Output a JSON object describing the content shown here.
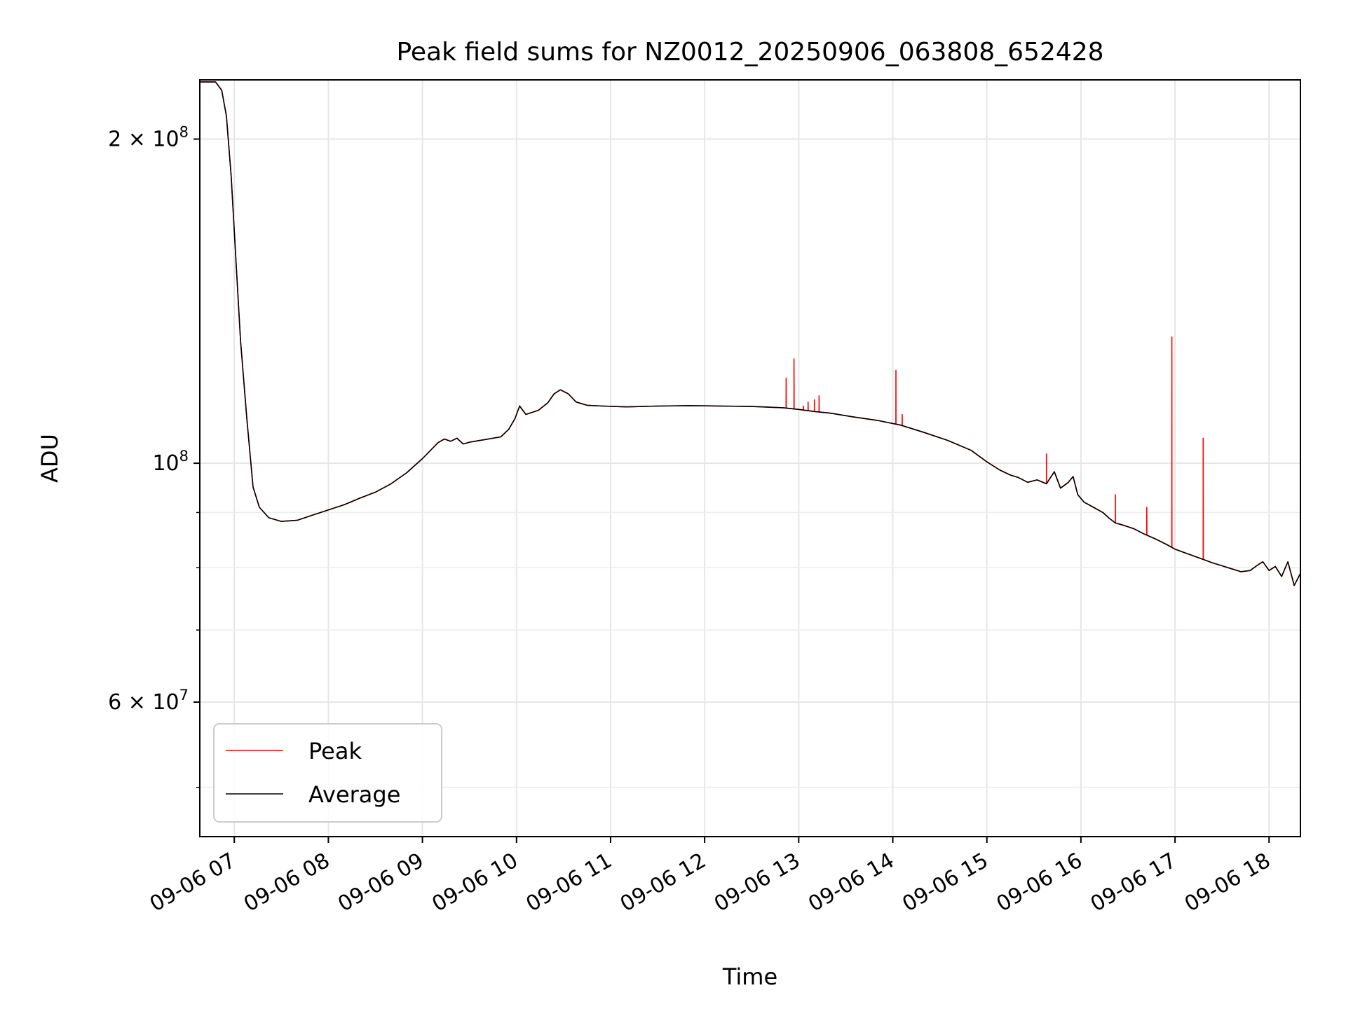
{
  "chart_data": {
    "type": "line",
    "title": "Peak field sums for NZ0012_20250906_063808_652428",
    "xlabel": "Time",
    "ylabel": "ADU",
    "y_scale": "log",
    "x_unit": "hours of 2025-09-06",
    "xlim": [
      "06:38",
      "18:20"
    ],
    "ylim": [
      45000000,
      227000000
    ],
    "grid": true,
    "legend_position": "lower-left",
    "x_ticks": [
      "09-06 07",
      "09-06 08",
      "09-06 09",
      "09-06 10",
      "09-06 11",
      "09-06 12",
      "09-06 13",
      "09-06 14",
      "09-06 15",
      "09-06 16",
      "09-06 17",
      "09-06 18"
    ],
    "y_ticks_major": [
      {
        "value": 200000000,
        "label": "2×10⁸",
        "mant": "2 × 10",
        "exp": "8"
      },
      {
        "value": 100000000,
        "label": "10⁸",
        "mant": "10",
        "exp": "8"
      },
      {
        "value": 60000000,
        "label": "6×10⁷",
        "mant": "6 × 10",
        "exp": "7"
      }
    ],
    "y_ticks_minor": [
      50000000,
      70000000,
      80000000,
      90000000
    ],
    "series": [
      {
        "name": "Peak",
        "color": "#ff0000"
      },
      {
        "name": "Average",
        "color": "#000000"
      }
    ],
    "average_points": [
      [
        "06:38",
        226000000
      ],
      [
        "06:48",
        226000000
      ],
      [
        "06:52",
        222000000
      ],
      [
        "06:55",
        210000000
      ],
      [
        "06:58",
        185000000
      ],
      [
        "07:01",
        155000000
      ],
      [
        "07:04",
        130000000
      ],
      [
        "07:08",
        110000000
      ],
      [
        "07:12",
        95000000
      ],
      [
        "07:16",
        91000000
      ],
      [
        "07:22",
        89000000
      ],
      [
        "07:30",
        88300000
      ],
      [
        "07:40",
        88500000
      ],
      [
        "07:50",
        89500000
      ],
      [
        "08:00",
        90500000
      ],
      [
        "08:10",
        91500000
      ],
      [
        "08:20",
        92800000
      ],
      [
        "08:30",
        94000000
      ],
      [
        "08:40",
        95700000
      ],
      [
        "08:50",
        98000000
      ],
      [
        "09:00",
        101000000
      ],
      [
        "09:10",
        104500000
      ],
      [
        "09:14",
        105300000
      ],
      [
        "09:18",
        104800000
      ],
      [
        "09:22",
        105500000
      ],
      [
        "09:26",
        104200000
      ],
      [
        "09:30",
        104600000
      ],
      [
        "09:40",
        105200000
      ],
      [
        "09:50",
        105800000
      ],
      [
        "09:55",
        107500000
      ],
      [
        "09:59",
        110000000
      ],
      [
        "10:02",
        113000000
      ],
      [
        "10:06",
        111000000
      ],
      [
        "10:10",
        111500000
      ],
      [
        "10:14",
        112000000
      ],
      [
        "10:20",
        113800000
      ],
      [
        "10:24",
        116000000
      ],
      [
        "10:28",
        117000000
      ],
      [
        "10:33",
        116000000
      ],
      [
        "10:38",
        114000000
      ],
      [
        "10:45",
        113200000
      ],
      [
        "10:55",
        113000000
      ],
      [
        "11:10",
        112800000
      ],
      [
        "11:30",
        113000000
      ],
      [
        "11:50",
        113100000
      ],
      [
        "12:10",
        113000000
      ],
      [
        "12:30",
        112900000
      ],
      [
        "12:50",
        112600000
      ],
      [
        "13:00",
        112200000
      ],
      [
        "13:10",
        111700000
      ],
      [
        "13:20",
        111300000
      ],
      [
        "13:35",
        110400000
      ],
      [
        "13:50",
        109600000
      ],
      [
        "14:05",
        108500000
      ],
      [
        "14:20",
        106800000
      ],
      [
        "14:35",
        105000000
      ],
      [
        "14:50",
        102800000
      ],
      [
        "15:00",
        100300000
      ],
      [
        "15:08",
        98600000
      ],
      [
        "15:15",
        97500000
      ],
      [
        "15:20",
        97000000
      ],
      [
        "15:26",
        96000000
      ],
      [
        "15:32",
        96500000
      ],
      [
        "15:38",
        95700000
      ],
      [
        "15:43",
        98200000
      ],
      [
        "15:47",
        94800000
      ],
      [
        "15:52",
        96000000
      ],
      [
        "15:55",
        97200000
      ],
      [
        "15:58",
        93500000
      ],
      [
        "16:02",
        92000000
      ],
      [
        "16:08",
        91000000
      ],
      [
        "16:14",
        90000000
      ],
      [
        "16:18",
        88900000
      ],
      [
        "16:22",
        88000000
      ],
      [
        "16:28",
        87500000
      ],
      [
        "16:34",
        86900000
      ],
      [
        "16:40",
        86000000
      ],
      [
        "16:48",
        85000000
      ],
      [
        "16:55",
        84000000
      ],
      [
        "17:00",
        83200000
      ],
      [
        "17:05",
        82700000
      ],
      [
        "17:12",
        82000000
      ],
      [
        "17:18",
        81400000
      ],
      [
        "17:24",
        80800000
      ],
      [
        "17:30",
        80300000
      ],
      [
        "17:36",
        79800000
      ],
      [
        "17:42",
        79300000
      ],
      [
        "17:48",
        79500000
      ],
      [
        "17:52",
        80300000
      ],
      [
        "17:56",
        81000000
      ],
      [
        "18:00",
        79500000
      ],
      [
        "18:04",
        80200000
      ],
      [
        "18:08",
        78500000
      ],
      [
        "18:12",
        81000000
      ],
      [
        "18:16",
        77000000
      ],
      [
        "18:20",
        79000000
      ]
    ],
    "peak_spikes": [
      [
        "12:52",
        120000000
      ],
      [
        "12:57",
        125000000
      ],
      [
        "13:03",
        113000000
      ],
      [
        "13:06",
        114000000
      ],
      [
        "13:10",
        114500000
      ],
      [
        "13:13",
        115500000
      ],
      [
        "14:02",
        122000000
      ],
      [
        "14:06",
        111000000
      ],
      [
        "14:09",
        108000000
      ],
      [
        "15:38",
        102000000
      ],
      [
        "16:22",
        93500000
      ],
      [
        "16:42",
        91000000
      ],
      [
        "16:58",
        131000000
      ],
      [
        "17:18",
        105500000
      ]
    ],
    "legend": {
      "peak_label": "Peak",
      "average_label": "Average"
    }
  }
}
